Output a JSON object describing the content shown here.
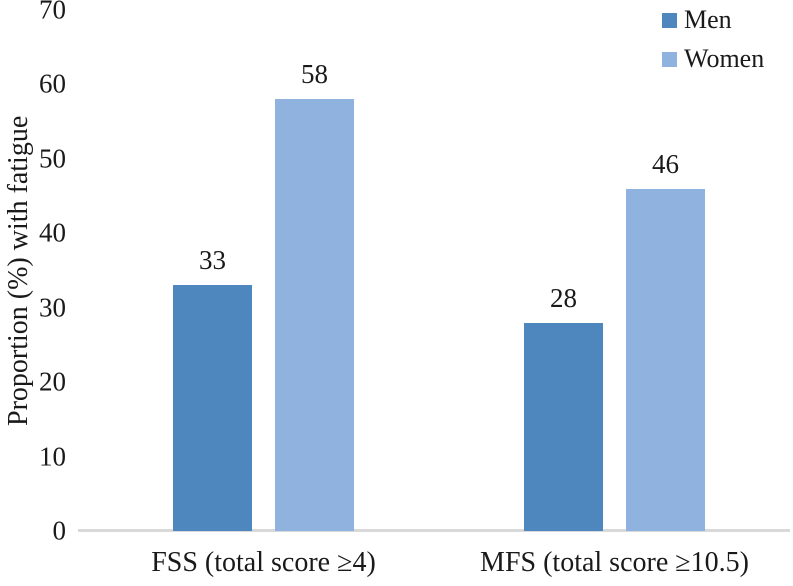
{
  "chart_data": {
    "type": "bar",
    "title": "",
    "categories": [
      "FSS (total score ≥4)",
      "MFS (total score ≥10.5)"
    ],
    "series": [
      {
        "name": "Men",
        "color": "#4E87BE",
        "values": [
          33,
          28
        ]
      },
      {
        "name": "Women",
        "color": "#8FB2DF",
        "values": [
          58,
          46
        ]
      }
    ],
    "xlabel": "",
    "ylabel": "Proportion (%) with fatigue",
    "ylim": [
      0,
      70
    ],
    "yticks": [
      0,
      10,
      20,
      30,
      40,
      50,
      60,
      70
    ],
    "grid": false,
    "legend_position": "top-right",
    "bar_value_labels_shown": true
  },
  "colors": {
    "axis_line": "#D9D9D9",
    "text": "#1A1A1A",
    "background": "#FFFFFF"
  }
}
